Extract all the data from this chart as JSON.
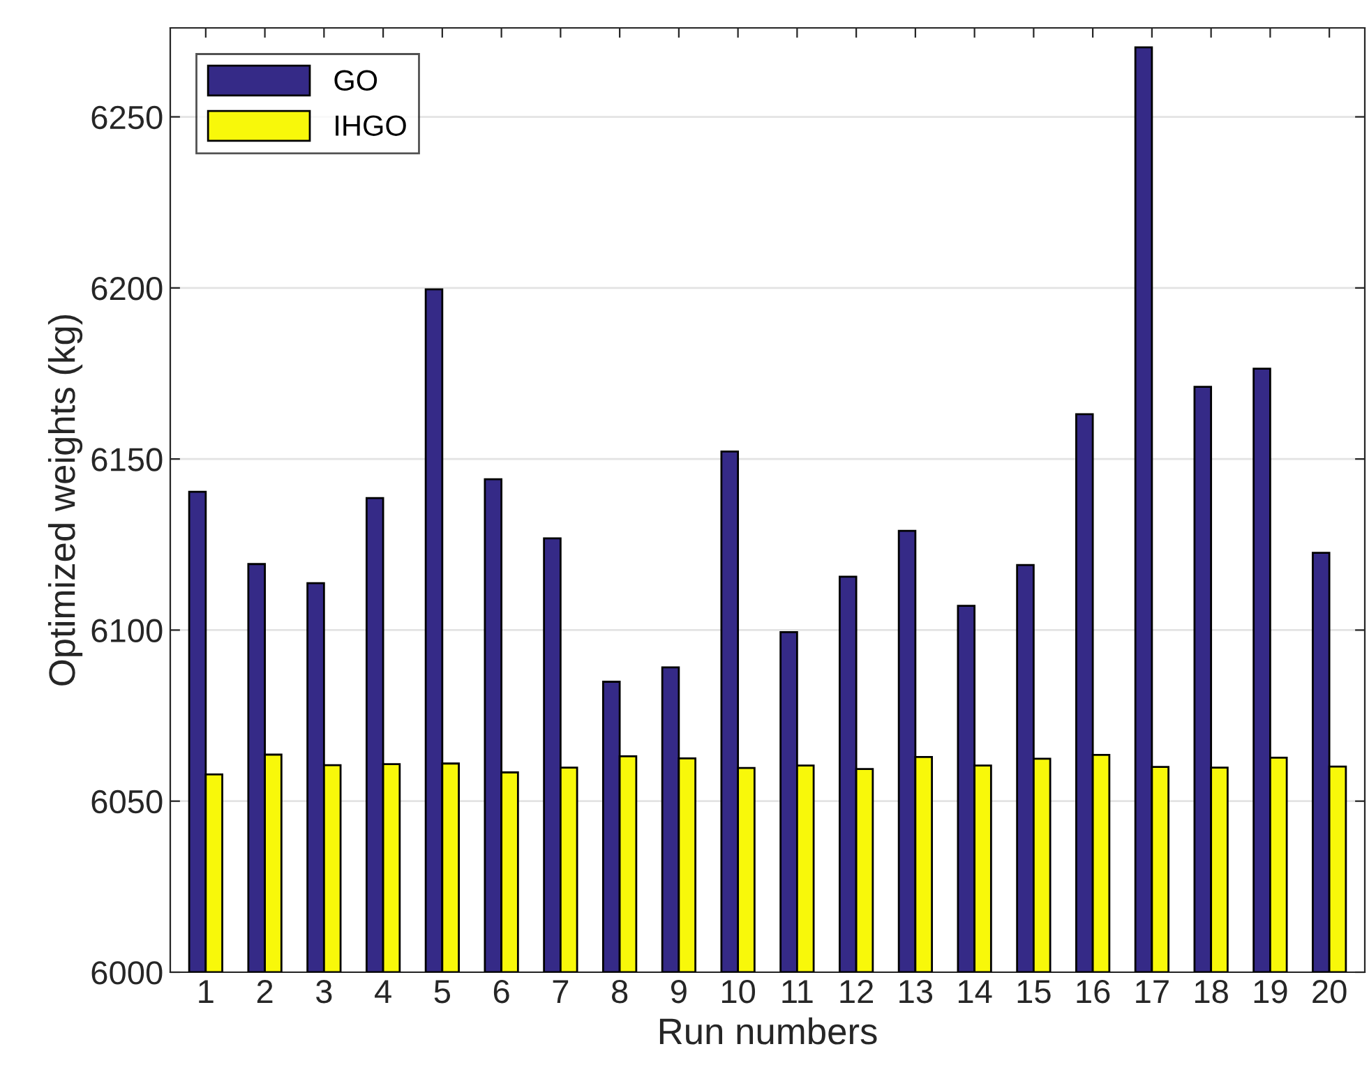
{
  "chart_data": {
    "type": "bar",
    "xlabel": "Run numbers",
    "ylabel": "Optimized weights (kg)",
    "categories": [
      "1",
      "2",
      "3",
      "4",
      "5",
      "6",
      "7",
      "8",
      "9",
      "10",
      "11",
      "12",
      "13",
      "14",
      "15",
      "16",
      "17",
      "18",
      "19",
      "20"
    ],
    "series": [
      {
        "name": "GO",
        "color": "#352a87",
        "values": [
          6140.4,
          6119.3,
          6113.7,
          6138.6,
          6199.6,
          6144.1,
          6126.8,
          6084.9,
          6089.1,
          6152.2,
          6099.4,
          6115.6,
          6129.0,
          6107.1,
          6119.0,
          6163.1,
          6270.3,
          6171.1,
          6176.4,
          6122.6
        ]
      },
      {
        "name": "IHGO",
        "color": "#f8f80a",
        "values": [
          6057.8,
          6063.6,
          6060.5,
          6060.8,
          6061.0,
          6058.4,
          6059.8,
          6063.1,
          6062.5,
          6059.7,
          6060.4,
          6059.4,
          6062.9,
          6060.4,
          6062.4,
          6063.5,
          6060.0,
          6059.8,
          6062.7,
          6060.1
        ]
      }
    ],
    "ylim": [
      6000,
      6276
    ],
    "yticks": [
      6000,
      6050,
      6100,
      6150,
      6200,
      6250
    ],
    "grid": "y",
    "legend": "top left"
  }
}
